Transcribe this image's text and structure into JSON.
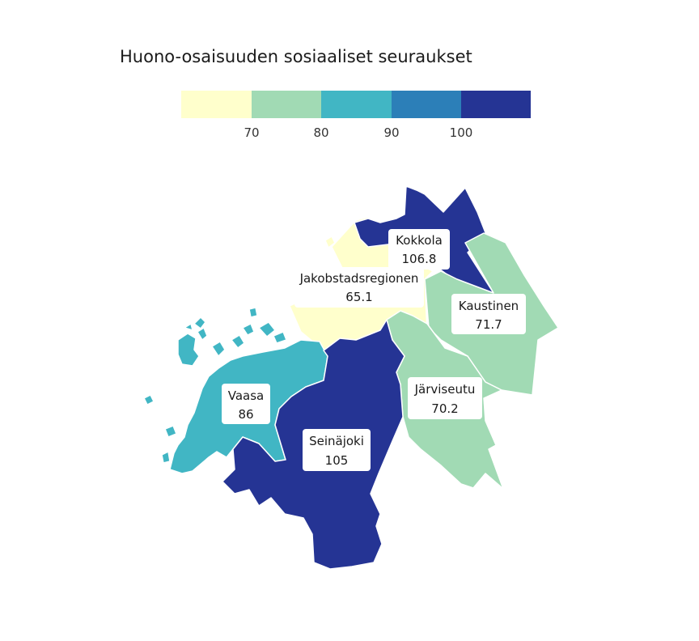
{
  "title": "Huono-osaisuuden sosiaaliset seuraukset",
  "legend": {
    "colors": [
      "#ffffcc",
      "#a1dab4",
      "#41b6c4",
      "#2c7fb8",
      "#253494"
    ],
    "ticks": [
      "70",
      "80",
      "90",
      "100"
    ]
  },
  "regions": [
    {
      "key": "kokkola",
      "name": "Kokkola",
      "value": "106.8",
      "color": "#253494"
    },
    {
      "key": "jakobstad",
      "name": "Jakobstadsregionen",
      "value": "65.1",
      "color": "#ffffcc"
    },
    {
      "key": "kaustinen",
      "name": "Kaustinen",
      "value": "71.7",
      "color": "#a1dab4"
    },
    {
      "key": "vaasa",
      "name": "Vaasa",
      "value": "86",
      "color": "#41b6c4"
    },
    {
      "key": "jarviseutu",
      "name": "Järviseutu",
      "value": "70.2",
      "color": "#a1dab4"
    },
    {
      "key": "seinajoki",
      "name": "Seinäjoki",
      "value": "105",
      "color": "#253494"
    }
  ]
}
